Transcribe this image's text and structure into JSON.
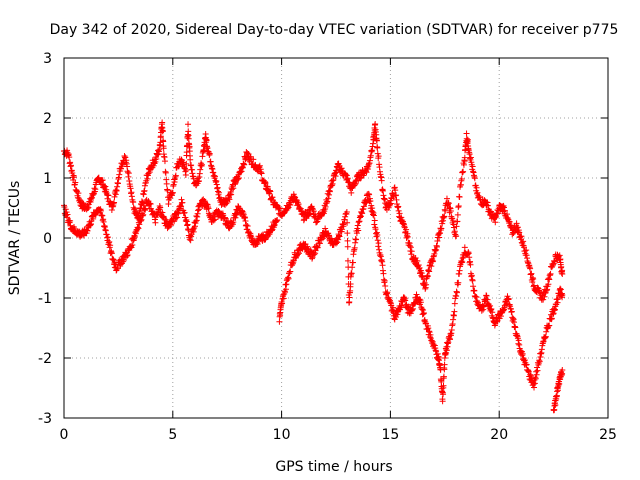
{
  "chart_data": {
    "type": "scatter",
    "title": "Day 342 of 2020, Sidereal Day-to-day VTEC variation (SDTVAR) for receiver p775",
    "xlabel": "GPS time / hours",
    "ylabel": "SDTVAR / TECUs",
    "xlim": [
      0,
      25
    ],
    "ylim": [
      -3,
      3
    ],
    "xticks": [
      "0",
      "5",
      "10",
      "15",
      "20",
      "25"
    ],
    "yticks": [
      "3",
      "2",
      "1",
      "0",
      "-1",
      "-2",
      "-3"
    ],
    "grid": true,
    "marker": "+",
    "color": "#ff0000",
    "series": [
      {
        "name": "SDTVAR",
        "tracks": [
          [
            [
              0.0,
              1.45
            ],
            [
              0.2,
              1.4
            ],
            [
              0.4,
              1.05
            ],
            [
              0.6,
              0.75
            ],
            [
              0.8,
              0.55
            ],
            [
              1.0,
              0.5
            ],
            [
              1.2,
              0.6
            ],
            [
              1.4,
              0.8
            ],
            [
              1.6,
              1.0
            ],
            [
              1.8,
              0.9
            ],
            [
              2.0,
              0.7
            ],
            [
              2.2,
              0.5
            ],
            [
              2.4,
              0.8
            ],
            [
              2.6,
              1.2
            ],
            [
              2.8,
              1.35
            ],
            [
              3.0,
              1.0
            ],
            [
              3.2,
              0.5
            ],
            [
              3.4,
              0.3
            ],
            [
              3.6,
              0.6
            ],
            [
              3.8,
              1.0
            ],
            [
              4.0,
              1.2
            ],
            [
              4.2,
              1.3
            ],
            [
              4.4,
              1.5
            ],
            [
              4.5,
              1.95
            ],
            [
              4.6,
              1.4
            ],
            [
              4.8,
              0.6
            ],
            [
              5.0,
              0.8
            ],
            [
              5.2,
              1.2
            ],
            [
              5.4,
              1.3
            ],
            [
              5.6,
              1.1
            ],
            [
              5.7,
              1.85
            ],
            [
              5.8,
              1.3
            ],
            [
              6.0,
              0.9
            ],
            [
              6.2,
              1.0
            ],
            [
              6.4,
              1.4
            ],
            [
              6.5,
              1.7
            ],
            [
              6.6,
              1.5
            ],
            [
              6.8,
              1.2
            ],
            [
              7.0,
              0.9
            ],
            [
              7.2,
              0.6
            ],
            [
              7.4,
              0.6
            ],
            [
              7.6,
              0.7
            ],
            [
              7.8,
              0.9
            ],
            [
              8.0,
              1.0
            ],
            [
              8.2,
              1.2
            ],
            [
              8.4,
              1.4
            ],
            [
              8.6,
              1.3
            ],
            [
              8.8,
              1.2
            ],
            [
              9.0,
              1.15
            ],
            [
              9.2,
              0.9
            ],
            [
              9.4,
              0.8
            ],
            [
              9.6,
              0.6
            ],
            [
              9.8,
              0.5
            ],
            [
              10.0,
              0.4
            ],
            [
              10.2,
              0.5
            ],
            [
              10.4,
              0.6
            ],
            [
              10.6,
              0.7
            ],
            [
              10.8,
              0.5
            ],
            [
              11.0,
              0.35
            ],
            [
              11.2,
              0.4
            ],
            [
              11.4,
              0.5
            ],
            [
              11.6,
              0.3
            ],
            [
              11.8,
              0.4
            ],
            [
              12.0,
              0.5
            ],
            [
              12.2,
              0.8
            ],
            [
              12.4,
              1.0
            ],
            [
              12.6,
              1.2
            ],
            [
              12.8,
              1.1
            ],
            [
              13.0,
              1.0
            ],
            [
              13.2,
              0.8
            ],
            [
              13.4,
              0.95
            ],
            [
              13.6,
              1.05
            ],
            [
              13.8,
              1.1
            ],
            [
              14.0,
              1.2
            ],
            [
              14.2,
              1.6
            ],
            [
              14.3,
              1.85
            ],
            [
              14.4,
              1.5
            ],
            [
              14.6,
              0.9
            ],
            [
              14.8,
              0.5
            ],
            [
              15.0,
              0.6
            ],
            [
              15.2,
              0.8
            ],
            [
              15.4,
              0.4
            ],
            [
              15.6,
              0.2
            ],
            [
              15.8,
              0.0
            ],
            [
              16.0,
              -0.3
            ],
            [
              16.2,
              -0.4
            ],
            [
              16.4,
              -0.6
            ],
            [
              16.6,
              -0.8
            ],
            [
              16.8,
              -0.5
            ],
            [
              17.0,
              -0.3
            ],
            [
              17.2,
              0.0
            ],
            [
              17.4,
              0.3
            ],
            [
              17.6,
              0.6
            ],
            [
              17.8,
              0.4
            ],
            [
              18.0,
              0.0
            ],
            [
              18.2,
              0.8
            ],
            [
              18.4,
              1.3
            ],
            [
              18.5,
              1.7
            ],
            [
              18.6,
              1.5
            ],
            [
              18.8,
              1.1
            ],
            [
              19.0,
              0.7
            ],
            [
              19.2,
              0.6
            ],
            [
              19.4,
              0.6
            ],
            [
              19.6,
              0.4
            ],
            [
              19.8,
              0.3
            ],
            [
              20.0,
              0.5
            ],
            [
              20.2,
              0.5
            ],
            [
              20.4,
              0.3
            ],
            [
              20.6,
              0.1
            ],
            [
              20.8,
              0.2
            ],
            [
              21.0,
              0.0
            ],
            [
              21.2,
              -0.2
            ],
            [
              21.4,
              -0.5
            ],
            [
              21.6,
              -0.8
            ],
            [
              21.8,
              -0.9
            ],
            [
              22.0,
              -1.0
            ],
            [
              22.2,
              -0.8
            ],
            [
              22.4,
              -0.5
            ],
            [
              22.6,
              -0.3
            ],
            [
              22.8,
              -0.35
            ],
            [
              22.9,
              -0.6
            ]
          ],
          [
            [
              0.0,
              0.5
            ],
            [
              0.2,
              0.3
            ],
            [
              0.4,
              0.15
            ],
            [
              0.6,
              0.1
            ],
            [
              0.8,
              0.05
            ],
            [
              1.0,
              0.1
            ],
            [
              1.2,
              0.25
            ],
            [
              1.4,
              0.4
            ],
            [
              1.6,
              0.5
            ],
            [
              1.8,
              0.3
            ],
            [
              2.0,
              0.0
            ],
            [
              2.2,
              -0.3
            ],
            [
              2.4,
              -0.5
            ],
            [
              2.6,
              -0.4
            ],
            [
              2.8,
              -0.3
            ],
            [
              3.0,
              -0.2
            ],
            [
              3.2,
              0.0
            ],
            [
              3.4,
              0.2
            ],
            [
              3.6,
              0.4
            ],
            [
              3.8,
              0.6
            ],
            [
              4.0,
              0.5
            ],
            [
              4.2,
              0.3
            ],
            [
              4.4,
              0.5
            ],
            [
              4.6,
              0.3
            ],
            [
              4.8,
              0.2
            ],
            [
              5.0,
              0.3
            ],
            [
              5.2,
              0.4
            ],
            [
              5.4,
              0.6
            ],
            [
              5.6,
              0.3
            ],
            [
              5.8,
              0.0
            ],
            [
              6.0,
              0.2
            ],
            [
              6.2,
              0.5
            ],
            [
              6.4,
              0.6
            ],
            [
              6.6,
              0.5
            ],
            [
              6.8,
              0.3
            ],
            [
              7.0,
              0.4
            ],
            [
              7.2,
              0.4
            ],
            [
              7.4,
              0.3
            ],
            [
              7.6,
              0.2
            ],
            [
              7.8,
              0.3
            ],
            [
              8.0,
              0.5
            ],
            [
              8.2,
              0.4
            ],
            [
              8.4,
              0.2
            ],
            [
              8.6,
              0.0
            ],
            [
              8.8,
              -0.1
            ],
            [
              9.0,
              0.0
            ],
            [
              9.2,
              0.0
            ],
            [
              9.4,
              0.1
            ],
            [
              9.6,
              0.2
            ],
            [
              9.8,
              0.3
            ]
          ],
          [
            [
              9.9,
              -1.35
            ],
            [
              10.0,
              -1.1
            ],
            [
              10.2,
              -0.8
            ],
            [
              10.4,
              -0.5
            ],
            [
              10.6,
              -0.3
            ],
            [
              10.8,
              -0.2
            ],
            [
              11.0,
              -0.1
            ],
            [
              11.2,
              -0.2
            ],
            [
              11.4,
              -0.3
            ],
            [
              11.6,
              -0.15
            ],
            [
              11.8,
              0.0
            ],
            [
              12.0,
              0.1
            ],
            [
              12.2,
              0.0
            ],
            [
              12.4,
              -0.1
            ],
            [
              12.6,
              0.0
            ],
            [
              12.8,
              0.2
            ],
            [
              13.0,
              0.4
            ],
            [
              13.1,
              -1.1
            ],
            [
              13.2,
              -0.6
            ],
            [
              13.4,
              0.0
            ],
            [
              13.6,
              0.3
            ],
            [
              13.8,
              0.6
            ],
            [
              14.0,
              0.7
            ],
            [
              14.2,
              0.4
            ],
            [
              14.4,
              0.0
            ],
            [
              14.6,
              -0.4
            ],
            [
              14.8,
              -0.9
            ],
            [
              15.0,
              -1.1
            ],
            [
              15.2,
              -1.3
            ],
            [
              15.4,
              -1.2
            ],
            [
              15.6,
              -1.0
            ],
            [
              15.8,
              -1.2
            ],
            [
              16.0,
              -1.2
            ],
            [
              16.2,
              -1.0
            ],
            [
              16.4,
              -1.1
            ],
            [
              16.6,
              -1.4
            ],
            [
              16.8,
              -1.6
            ],
            [
              17.0,
              -1.8
            ],
            [
              17.2,
              -2.0
            ],
            [
              17.3,
              -2.2
            ],
            [
              17.4,
              -2.7
            ],
            [
              17.5,
              -2.0
            ],
            [
              17.6,
              -1.8
            ],
            [
              17.8,
              -1.6
            ],
            [
              18.0,
              -1.0
            ],
            [
              18.2,
              -0.5
            ],
            [
              18.4,
              -0.2
            ],
            [
              18.6,
              -0.3
            ],
            [
              18.8,
              -0.8
            ],
            [
              19.0,
              -1.1
            ],
            [
              19.2,
              -1.2
            ],
            [
              19.4,
              -1.0
            ],
            [
              19.6,
              -1.2
            ],
            [
              19.8,
              -1.4
            ],
            [
              20.0,
              -1.3
            ],
            [
              20.2,
              -1.2
            ],
            [
              20.4,
              -1.0
            ],
            [
              20.6,
              -1.3
            ],
            [
              20.8,
              -1.6
            ],
            [
              21.0,
              -1.9
            ],
            [
              21.2,
              -2.1
            ],
            [
              21.4,
              -2.3
            ],
            [
              21.6,
              -2.45
            ],
            [
              21.8,
              -2.1
            ],
            [
              22.0,
              -1.8
            ],
            [
              22.2,
              -1.5
            ],
            [
              22.4,
              -1.3
            ],
            [
              22.6,
              -1.1
            ],
            [
              22.8,
              -0.9
            ],
            [
              22.9,
              -0.95
            ]
          ],
          [
            [
              22.5,
              -2.85
            ],
            [
              22.6,
              -2.7
            ],
            [
              22.7,
              -2.5
            ],
            [
              22.8,
              -2.3
            ],
            [
              22.9,
              -2.2
            ]
          ]
        ]
      }
    ]
  }
}
